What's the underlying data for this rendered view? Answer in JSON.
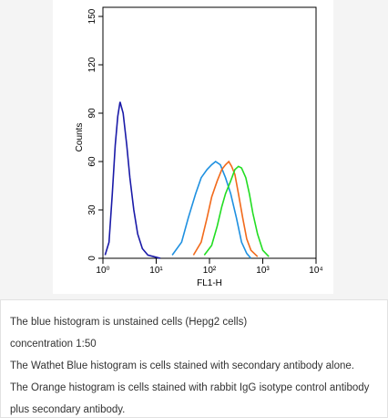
{
  "chart_data": {
    "type": "line",
    "x_label": "FL1-H",
    "y_label": "Counts",
    "x_log": true,
    "xlim": [
      1,
      10000
    ],
    "xticks": [
      {
        "value": 1,
        "label": "10⁰"
      },
      {
        "value": 10,
        "label": "10¹"
      },
      {
        "value": 100,
        "label": "10²"
      },
      {
        "value": 1000,
        "label": "10³"
      },
      {
        "value": 10000,
        "label": "10⁴"
      }
    ],
    "ylim": [
      0,
      150
    ],
    "yticks": [
      0,
      30,
      60,
      90,
      120,
      150
    ],
    "series": [
      {
        "color": "#1a1aa8",
        "x": [
          1.1,
          1.3,
          1.5,
          1.7,
          1.9,
          2.1,
          2.4,
          2.8,
          3.2,
          3.8,
          4.5,
          5.5,
          7,
          9,
          12
        ],
        "values": [
          2,
          10,
          40,
          70,
          88,
          97,
          90,
          70,
          50,
          30,
          15,
          6,
          2,
          1,
          0
        ]
      },
      {
        "color": "#1e90e0",
        "x": [
          20,
          30,
          40,
          55,
          70,
          90,
          110,
          130,
          160,
          200,
          250,
          320,
          400,
          500,
          600
        ],
        "values": [
          2,
          10,
          25,
          40,
          50,
          55,
          58,
          60,
          58,
          50,
          40,
          25,
          10,
          3,
          0
        ]
      },
      {
        "color": "#f26a1b",
        "x": [
          50,
          70,
          90,
          110,
          140,
          170,
          200,
          230,
          260,
          300,
          350,
          420,
          500,
          600,
          800
        ],
        "values": [
          2,
          10,
          25,
          38,
          48,
          55,
          58,
          60,
          57,
          52,
          40,
          25,
          12,
          5,
          1
        ]
      },
      {
        "color": "#22dd22",
        "x": [
          80,
          110,
          140,
          170,
          200,
          250,
          300,
          350,
          400,
          480,
          560,
          650,
          800,
          1000,
          1300
        ],
        "values": [
          2,
          8,
          20,
          32,
          40,
          48,
          55,
          57,
          56,
          50,
          40,
          28,
          15,
          5,
          1
        ]
      }
    ]
  },
  "caption": [
    "The blue histogram is unstained cells (Hepg2 cells)",
    "concentration 1:50",
    "The Wathet Blue histogram is cells stained with secondary antibody alone.",
    "The Orange histogram is cells stained with rabbit IgG isotype control antibody",
    "plus secondary antibody."
  ]
}
